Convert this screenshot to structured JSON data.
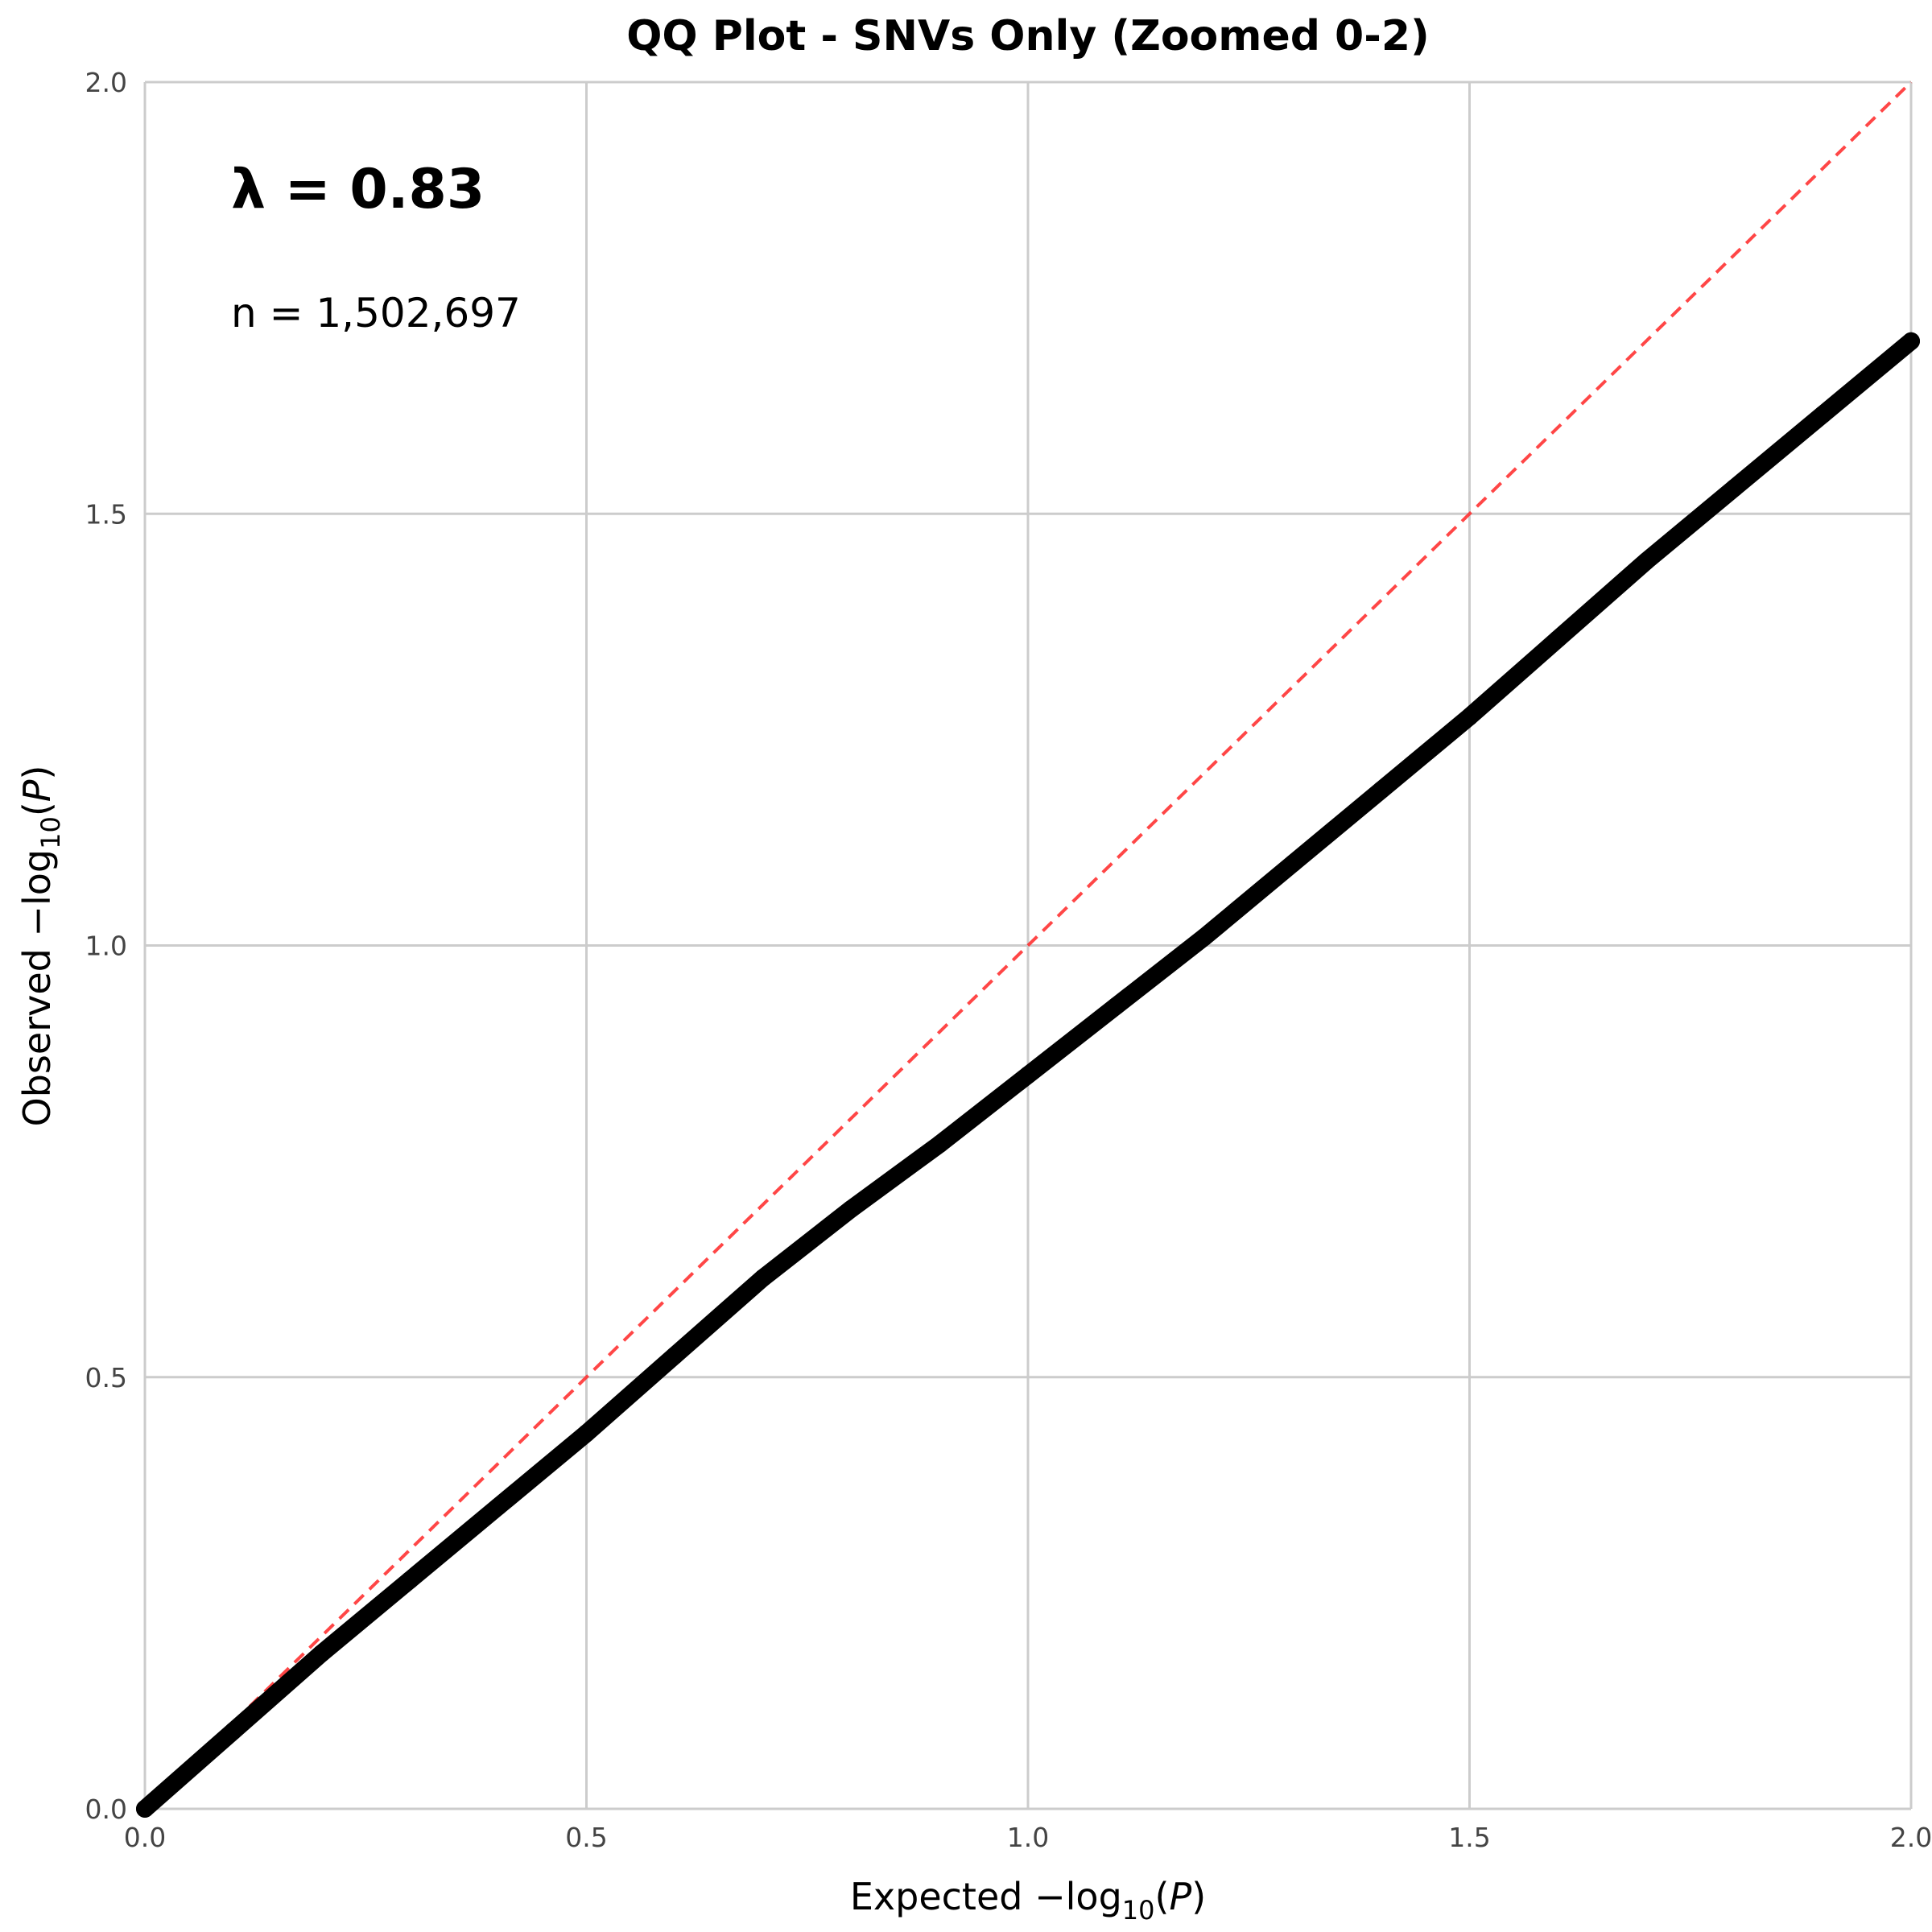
{
  "chart_data": {
    "type": "scatter",
    "title": "QQ Plot - SNVs Only (Zoomed 0-2)",
    "xlabel": {
      "prefix": "Expected ",
      "minus": "−",
      "log": "log",
      "sub": "10",
      "open": "(",
      "var": "P",
      "close": ")"
    },
    "ylabel": {
      "prefix": "Observed ",
      "minus": "−",
      "log": "log",
      "sub": "10",
      "open": "(",
      "var": "P",
      "close": ")"
    },
    "xlim": [
      0,
      2
    ],
    "ylim": [
      0,
      2
    ],
    "xticks": [
      "0.0",
      "0.5",
      "1.0",
      "1.5",
      "2.0"
    ],
    "yticks": [
      "0.0",
      "0.5",
      "1.0",
      "1.5",
      "2.0"
    ],
    "xtick_values": [
      0,
      0.5,
      1.0,
      1.5,
      2.0
    ],
    "ytick_values": [
      0,
      0.5,
      1.0,
      1.5,
      2.0
    ],
    "grid": true,
    "annotations": {
      "lambda": "λ = 0.83",
      "n": "n = 1,502,697"
    },
    "reference_line": {
      "style": "dashed",
      "color": "#ff3333",
      "from": [
        0,
        0
      ],
      "to": [
        2,
        2
      ]
    },
    "series": [
      {
        "color": "#000000",
        "x": [
          0.0,
          0.1,
          0.2,
          0.3,
          0.4,
          0.5,
          0.6,
          0.7,
          0.8,
          0.9,
          1.0,
          1.1,
          1.2,
          1.3,
          1.4,
          1.5,
          1.6,
          1.7,
          1.8,
          1.9,
          2.0
        ],
        "y": [
          0.0,
          0.09,
          0.18,
          0.265,
          0.35,
          0.435,
          0.525,
          0.615,
          0.695,
          0.77,
          0.85,
          0.93,
          1.01,
          1.095,
          1.18,
          1.265,
          1.355,
          1.445,
          1.53,
          1.615,
          1.7
        ]
      }
    ],
    "colors": {
      "points": "#000000",
      "reference": "#ff3333",
      "grid": "#cccccc"
    }
  }
}
